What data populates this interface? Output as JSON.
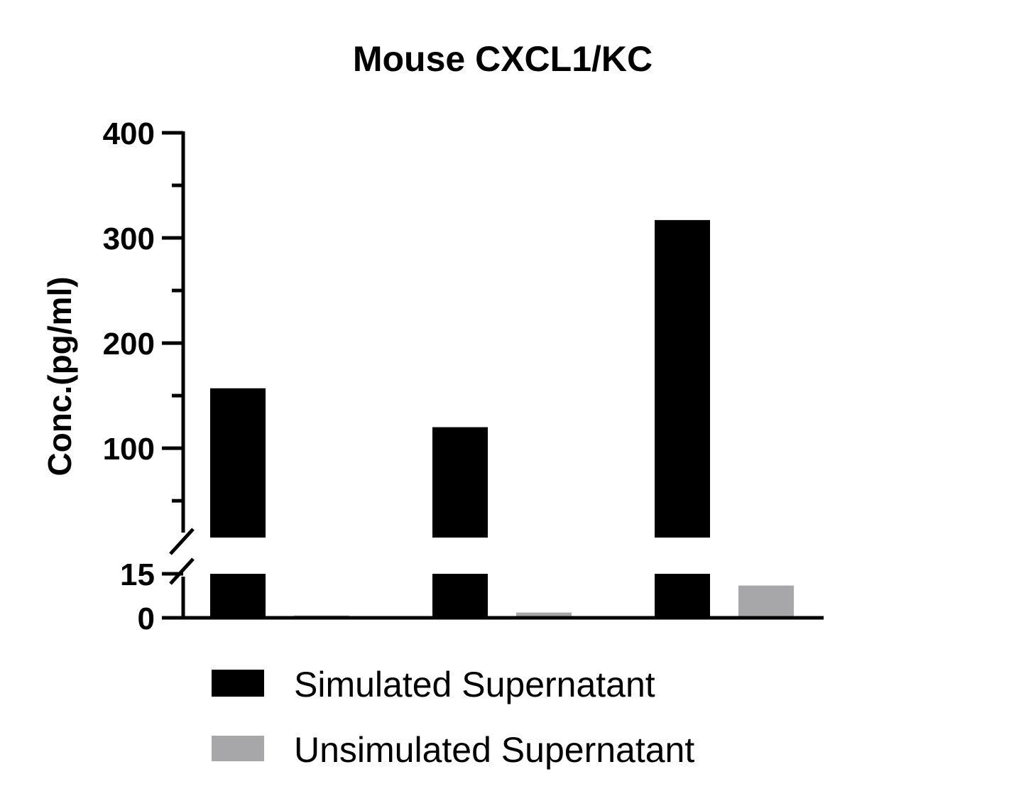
{
  "chart_data": {
    "type": "bar",
    "title": "Mouse CXCL1/KC",
    "xlabel": "",
    "ylabel": "Conc.(pg/ml)",
    "categories": [
      "",
      "",
      ""
    ],
    "series": [
      {
        "name": "Simulated Supernatant",
        "values": [
          157,
          120,
          317
        ],
        "color": "#000000"
      },
      {
        "name": "Unsimulated Supernatant",
        "values": [
          0.8,
          1.8,
          11
        ],
        "color": "#a7a7aa"
      }
    ],
    "y_axis_broken": true,
    "y_lower_segment": {
      "range": [
        0,
        15
      ],
      "tick_labels": [
        "0",
        "15"
      ],
      "ticks": [
        0,
        15
      ]
    },
    "y_upper_segment": {
      "range": [
        15,
        400
      ],
      "tick_labels": [
        "100",
        "200",
        "300",
        "400"
      ],
      "ticks": [
        100,
        200,
        300,
        400
      ],
      "minor_ticks": [
        50,
        150,
        250,
        350
      ]
    },
    "grid": false,
    "legend_position": "bottom"
  }
}
